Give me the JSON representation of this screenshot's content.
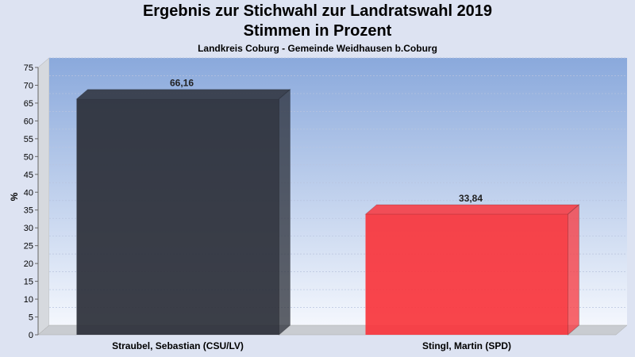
{
  "chart_data": {
    "type": "bar",
    "title": "Ergebnis zur Stichwahl zur Landratswahl 2019",
    "subtitle_line2": "Stimmen in Prozent",
    "subtitle": "Landkreis Coburg - Gemeinde Weidhausen b.Coburg",
    "ylabel": "%",
    "xlabel": "",
    "ylim": [
      0,
      75
    ],
    "ytick_step": 5,
    "categories": [
      "Straubel, Sebastian (CSU/LV)",
      "Stingl, Martin (SPD)"
    ],
    "values": [
      66.16,
      33.84
    ],
    "value_labels": [
      "66,16",
      "33,84"
    ],
    "bar_colors": [
      "#2b2f38",
      "#f8353c"
    ],
    "grid": true
  }
}
